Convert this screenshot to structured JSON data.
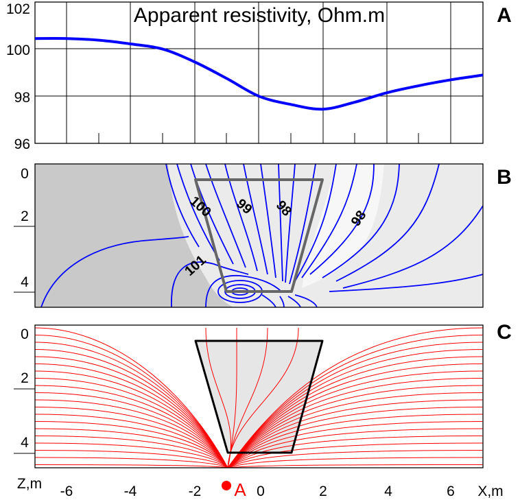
{
  "chart_data": [
    {
      "panel_id": "A",
      "type": "line",
      "title": "Apparent resistivity, Ohm.m",
      "yticks": [
        "102",
        "100",
        "98",
        "96"
      ],
      "ylim": [
        96,
        102
      ],
      "xlim": [
        -7,
        7
      ],
      "grid": true,
      "series": [
        {
          "color": "#0000ff",
          "x": [
            -7,
            -6,
            -5,
            -4,
            -3,
            -2,
            -1,
            0,
            1,
            2,
            3,
            4,
            5,
            6,
            7
          ],
          "y": [
            100.45,
            100.45,
            100.38,
            100.22,
            100.0,
            99.45,
            98.75,
            98.0,
            97.65,
            97.45,
            97.75,
            98.15,
            98.45,
            98.7,
            98.9
          ]
        }
      ]
    },
    {
      "panel_id": "B",
      "type": "contour",
      "yticks": [
        "0",
        "2",
        "4"
      ],
      "contour_labels": [
        "100",
        "99",
        "98",
        "98",
        "101"
      ],
      "line_color": "#0000ff",
      "body_outline": {
        "x": [
          -2,
          2,
          1,
          0
        ],
        "z": [
          0.3,
          0.3,
          4.4,
          4.4
        ]
      }
    },
    {
      "panel_id": "C",
      "type": "streamlines",
      "yticks": [
        "0",
        "2",
        "4"
      ],
      "line_color": "#ff0000",
      "body_outline": {
        "x": [
          -2,
          2,
          1,
          0
        ],
        "z": [
          0.3,
          0.3,
          4.4,
          4.4
        ]
      },
      "xticks": [
        "-6",
        "-4",
        "-2",
        "0",
        "2",
        "4",
        "6"
      ],
      "xlabel": "X,m",
      "ylabel": "Z,m",
      "source_label": "A",
      "source_x": -1
    }
  ],
  "colors": {
    "curve": "#0000ff",
    "streamline": "#ff0000",
    "source": "#ff0000",
    "body_outline_b": "#666666",
    "panel_b_left": "#c9c9c9",
    "panel_b_right": "#ebebeb",
    "body_fill_c": "#e6e6e6"
  }
}
